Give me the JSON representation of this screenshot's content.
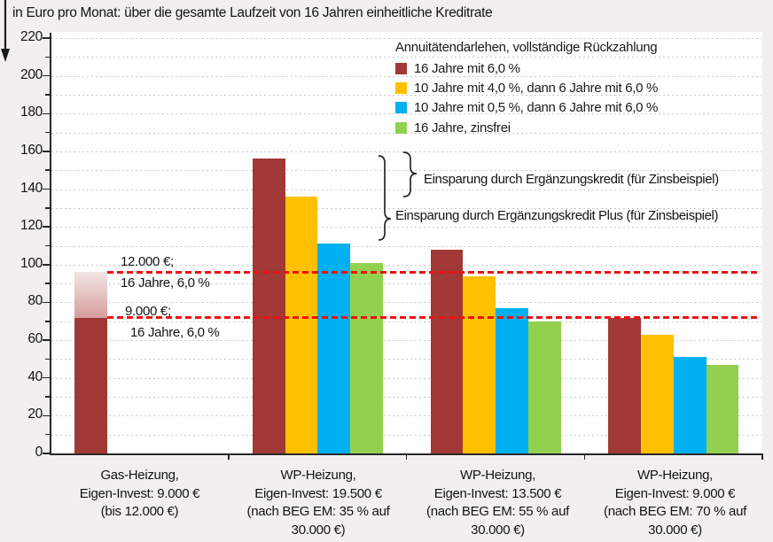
{
  "title": "in Euro pro Monat: über die gesamte Laufzeit von 16 Jahren einheitliche Kreditrate",
  "legend": {
    "title": "Annuitätendarlehen, vollständige Rückzahlung"
  },
  "annotations": {
    "ergaenzungskredit": "Einsparung durch Ergänzungskredit (für Zinsbeispiel)",
    "ergaenzungskredit_plus": "Einsparung durch Ergänzungskredit Plus (für Zinsbeispiel)"
  },
  "chart_data": {
    "type": "bar",
    "title": "in Euro pro Monat: über die gesamte Laufzeit von 16 Jahren einheitliche Kreditrate",
    "categories": [
      "Gas-Heizung, Eigen-Invest: 9.000 € (bis 12.000 €)",
      "WP-Heizung, Eigen-Invest: 19.500 € (nach BEG EM: 35 % auf 30.000 €)",
      "WP-Heizung, Eigen-Invest: 13.500 € (nach BEG EM: 55 % auf 30.000 €)",
      "WP-Heizung, Eigen-Invest: 9.000 € (nach BEG EM: 70 % auf 30.000 €)"
    ],
    "category_label_lines": [
      [
        "Gas-Heizung,",
        "Eigen-Invest: 9.000 €",
        "(bis 12.000 €)"
      ],
      [
        "WP-Heizung,",
        "Eigen-Invest: 19.500 €",
        "(nach BEG EM: 35 % auf",
        "30.000 €)"
      ],
      [
        "WP-Heizung,",
        "Eigen-Invest: 13.500 €",
        "(nach BEG EM: 55 % auf",
        "30.000 €)"
      ],
      [
        "WP-Heizung,",
        "Eigen-Invest: 9.000 €",
        "(nach BEG EM: 70 % auf",
        "30.000 €)"
      ]
    ],
    "series": [
      {
        "name": "16 Jahre mit 6,0 %",
        "color": "#A03936",
        "values": [
          72,
          156,
          108,
          72
        ]
      },
      {
        "name": "10 Jahre mit 4,0 %, dann 6 Jahre mit 6,0 %",
        "color": "#FFC000",
        "values": [
          null,
          136,
          94,
          63
        ]
      },
      {
        "name": "10 Jahre mit 0,5 %, dann 6 Jahre mit 6,0 %",
        "color": "#00B0F0",
        "values": [
          null,
          111,
          77,
          51
        ]
      },
      {
        "name": "16 Jahre, zinsfrei",
        "color": "#92D050",
        "values": [
          null,
          101,
          70,
          47
        ]
      }
    ],
    "overlay_segment": {
      "category_index": 0,
      "series_index": 0,
      "from": 72,
      "to": 96,
      "label": "bis 12.000 €",
      "color_top": "#F3E5E5",
      "color_bottom": "#D79D9D"
    },
    "reference_lines": [
      {
        "value": 96,
        "label_line1": "12.000 €;",
        "label_line2": "16 Jahre, 6,0 %",
        "color": "#EE1010"
      },
      {
        "value": 72,
        "label_line1": "9.000 €;",
        "label_line2": "16 Jahre, 6,0 %",
        "color": "#EE1010"
      }
    ],
    "ylim": [
      0,
      220
    ],
    "yticks": [
      0,
      20,
      40,
      60,
      80,
      100,
      120,
      140,
      160,
      180,
      200,
      220
    ],
    "minor_grid_step": 10,
    "grid": "dotted",
    "legend_position": "top-right",
    "xlabel": "",
    "ylabel": "in Euro pro Monat"
  }
}
